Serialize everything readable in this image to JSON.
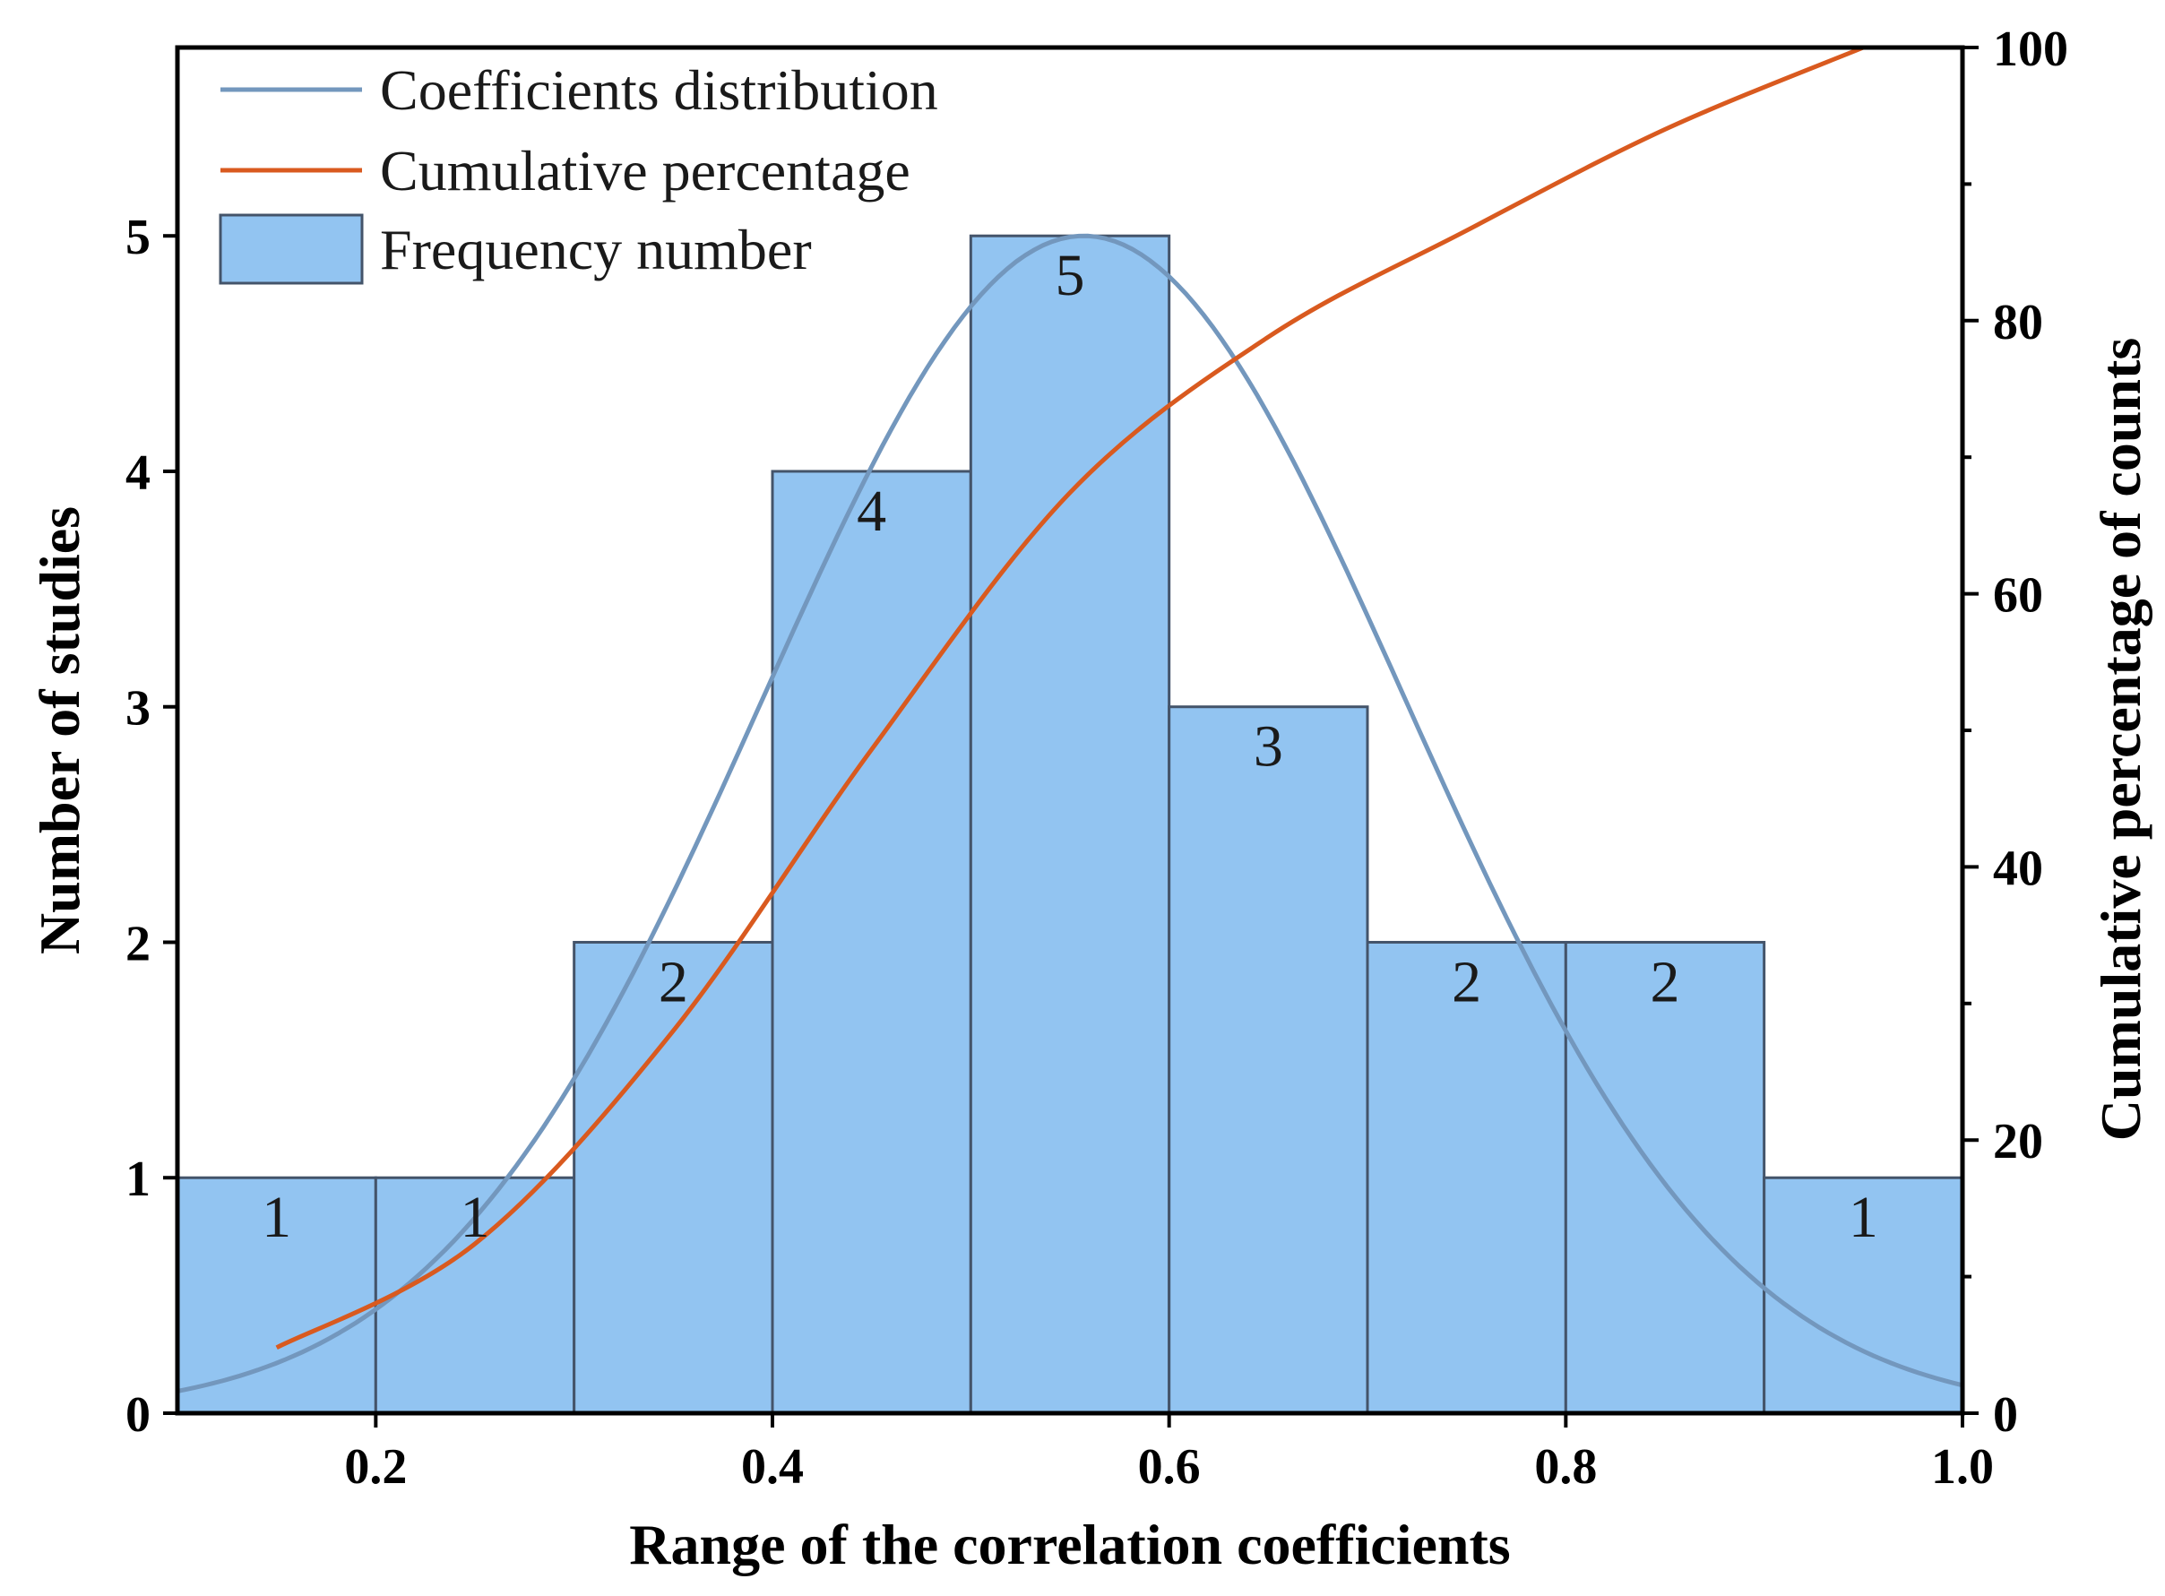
{
  "chart_data": {
    "type": "bar",
    "title": "",
    "xlabel": "Range of the correlation coefficients",
    "ylabel": "Number of studies",
    "y2label": "Cumulative percentage of counts",
    "xlim": [
      0.1,
      1.0
    ],
    "ylim": [
      0,
      5.8
    ],
    "y2lim": [
      0,
      100
    ],
    "x_ticks": [
      {
        "value": 0.2,
        "label": "0.2"
      },
      {
        "value": 0.4,
        "label": "0.4"
      },
      {
        "value": 0.6,
        "label": "0.6"
      },
      {
        "value": 0.8,
        "label": "0.8"
      },
      {
        "value": 1.0,
        "label": "1.0"
      }
    ],
    "y_ticks": [
      {
        "value": 0,
        "label": "0"
      },
      {
        "value": 1,
        "label": "1"
      },
      {
        "value": 2,
        "label": "2"
      },
      {
        "value": 3,
        "label": "3"
      },
      {
        "value": 4,
        "label": "4"
      },
      {
        "value": 5,
        "label": "5"
      }
    ],
    "y2_ticks": [
      {
        "value": 0,
        "label": "0"
      },
      {
        "value": 20,
        "label": "20"
      },
      {
        "value": 40,
        "label": "40"
      },
      {
        "value": 60,
        "label": "60"
      },
      {
        "value": 80,
        "label": "80"
      },
      {
        "value": 100,
        "label": "100"
      }
    ],
    "y2_minor_ticks": [
      10,
      30,
      50,
      70,
      90
    ],
    "bins": [
      {
        "start": 0.1,
        "end": 0.2,
        "count": 1,
        "label": "1"
      },
      {
        "start": 0.2,
        "end": 0.3,
        "count": 1,
        "label": "1"
      },
      {
        "start": 0.3,
        "end": 0.4,
        "count": 2,
        "label": "2"
      },
      {
        "start": 0.4,
        "end": 0.5,
        "count": 4,
        "label": "4"
      },
      {
        "start": 0.5,
        "end": 0.6,
        "count": 5,
        "label": "5"
      },
      {
        "start": 0.6,
        "end": 0.7,
        "count": 3,
        "label": "3"
      },
      {
        "start": 0.7,
        "end": 0.8,
        "count": 2,
        "label": "2"
      },
      {
        "start": 0.8,
        "end": 0.9,
        "count": 2,
        "label": "2"
      },
      {
        "start": 0.9,
        "end": 1.0,
        "count": 1,
        "label": "1"
      }
    ],
    "distribution": {
      "name": "Coefficients distribution",
      "mean": 0.557,
      "sd": 0.162,
      "peak": 5.0,
      "x_range": [
        0.1,
        1.0
      ]
    },
    "cumulative": {
      "name": "Cumulative percentage",
      "x": [
        0.15,
        0.25,
        0.35,
        0.45,
        0.55,
        0.65,
        0.75,
        0.85,
        0.95
      ],
      "values": [
        4.8,
        12.4,
        28.0,
        48.6,
        67.4,
        78.8,
        86.6,
        94.0,
        100
      ]
    },
    "legend": {
      "position": "top-left",
      "entries": [
        {
          "label": "Coefficients distribution",
          "kind": "line",
          "color": "#7397bd"
        },
        {
          "label": "Cumulative percentage",
          "kind": "line",
          "color": "#d95a1f"
        },
        {
          "label": "Frequency number",
          "kind": "patch",
          "color": "#92c4f1"
        }
      ]
    },
    "colors": {
      "bar_fill": "#92c4f1",
      "bar_edge": "#44546a",
      "distribution": "#7397bd",
      "cumulative": "#d95a1f"
    }
  }
}
